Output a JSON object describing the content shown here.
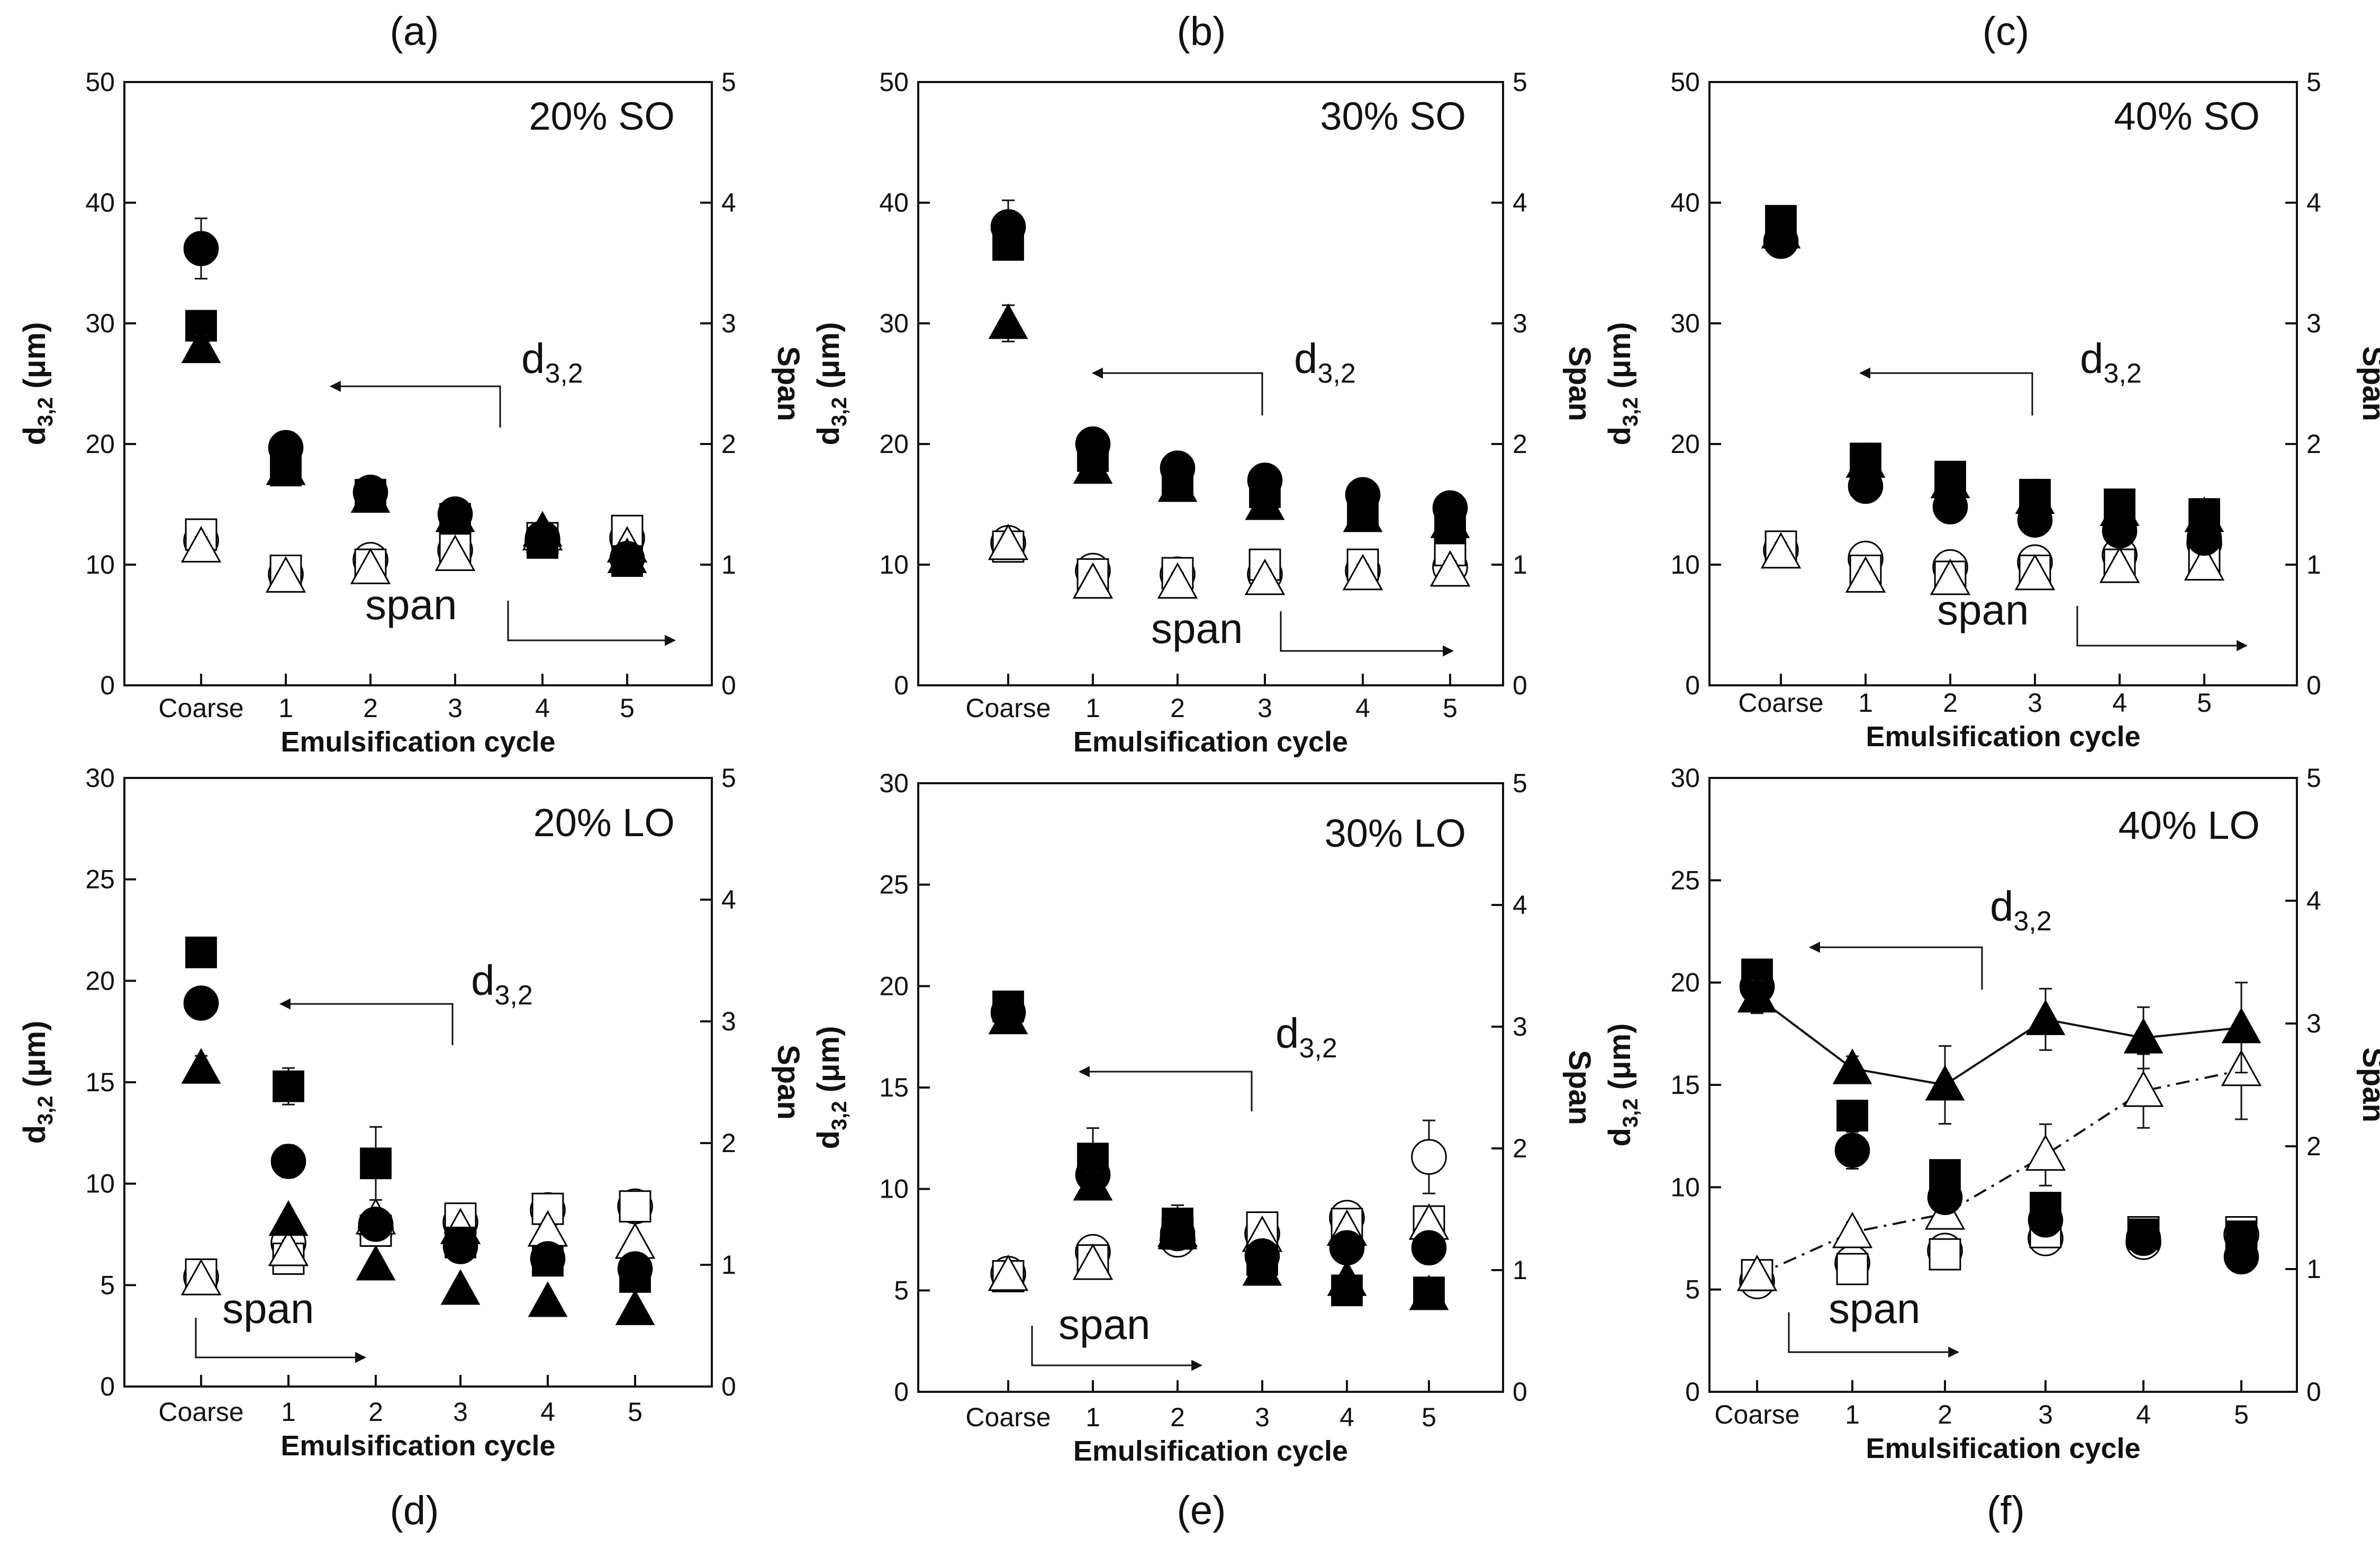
{
  "figure": {
    "xlabel": "Emulsification cycle",
    "ylabel_left_main": "d",
    "ylabel_left_sub": "3,2",
    "ylabel_left_unit": " (μm)",
    "ylabel_right": "Span",
    "annot_d_main": "d",
    "annot_d_sub": "3,2",
    "annot_span": "span"
  },
  "chart_data": [
    {
      "panel_label": "(a)",
      "title": "20% SO",
      "type": "scatter",
      "categories": [
        "Coarse",
        "1",
        "2",
        "3",
        "4",
        "5"
      ],
      "ylim_left": [
        0,
        50
      ],
      "yticks_left": [
        0,
        10,
        20,
        30,
        40,
        50
      ],
      "ylim_right": [
        0,
        5
      ],
      "yticks_right": [
        0,
        1,
        2,
        3,
        4,
        5
      ],
      "series": [
        {
          "name": "d32 circle",
          "marker": "circle",
          "filled": true,
          "axis": "left",
          "values": [
            36.2,
            19.7,
            16.0,
            14.2,
            12.2,
            10.5
          ],
          "errors": [
            2.5,
            0.6,
            0.5,
            0.4,
            0.5,
            0.4
          ]
        },
        {
          "name": "d32 square",
          "marker": "square",
          "filled": true,
          "axis": "left",
          "values": [
            29.8,
            17.8,
            15.8,
            13.8,
            11.8,
            10.3
          ],
          "errors": [
            0.5,
            0.5,
            0.4,
            0.4,
            0.4,
            0.4
          ]
        },
        {
          "name": "d32 triangle",
          "marker": "triangle",
          "filled": true,
          "axis": "left",
          "values": [
            28.0,
            17.9,
            15.6,
            14.0,
            12.8,
            10.6
          ],
          "errors": [
            1.0,
            0.5,
            0.4,
            0.4,
            0.4,
            0.4
          ]
        },
        {
          "name": "span circle",
          "marker": "circle",
          "filled": false,
          "axis": "right",
          "values": [
            1.2,
            0.92,
            1.04,
            1.12,
            1.2,
            1.22
          ],
          "errors": [
            0.08,
            0.06,
            0.06,
            0.06,
            0.06,
            0.06
          ]
        },
        {
          "name": "span square",
          "marker": "square",
          "filled": false,
          "axis": "right",
          "values": [
            1.25,
            0.95,
            1.0,
            1.15,
            1.22,
            1.28
          ],
          "errors": [
            0.08,
            0.06,
            0.06,
            0.06,
            0.06,
            0.06
          ]
        },
        {
          "name": "span triangle",
          "marker": "triangle",
          "filled": false,
          "axis": "right",
          "values": [
            1.15,
            0.9,
            0.97,
            1.08,
            1.25,
            1.15
          ],
          "errors": [
            0.08,
            0.06,
            0.06,
            0.06,
            0.06,
            0.06
          ]
        }
      ],
      "lines": []
    },
    {
      "panel_label": "(b)",
      "title": "30% SO",
      "type": "scatter",
      "categories": [
        "Coarse",
        "1",
        "2",
        "3",
        "4",
        "5"
      ],
      "ylim_left": [
        0,
        50
      ],
      "yticks_left": [
        0,
        10,
        20,
        30,
        40,
        50
      ],
      "ylim_right": [
        0,
        5
      ],
      "yticks_right": [
        0,
        1,
        2,
        3,
        4,
        5
      ],
      "series": [
        {
          "name": "d32 circle",
          "marker": "circle",
          "filled": true,
          "axis": "left",
          "values": [
            38.0,
            20.0,
            18.0,
            17.0,
            15.8,
            14.7
          ],
          "errors": [
            2.2,
            0.6,
            0.6,
            0.6,
            0.5,
            0.5
          ]
        },
        {
          "name": "d32 square",
          "marker": "square",
          "filled": true,
          "axis": "left",
          "values": [
            36.5,
            19.0,
            17.0,
            16.0,
            14.5,
            13.0
          ],
          "errors": [
            1.0,
            0.6,
            0.6,
            0.6,
            0.5,
            0.5
          ]
        },
        {
          "name": "d32 triangle",
          "marker": "triangle",
          "filled": true,
          "axis": "left",
          "values": [
            30.0,
            18.0,
            16.5,
            15.0,
            14.0,
            13.5
          ],
          "errors": [
            1.5,
            0.6,
            0.6,
            0.6,
            0.5,
            0.5
          ]
        },
        {
          "name": "span circle",
          "marker": "circle",
          "filled": false,
          "axis": "right",
          "values": [
            1.18,
            0.95,
            0.92,
            0.92,
            0.95,
            0.98
          ],
          "errors": [
            0.08,
            0.08,
            0.08,
            0.08,
            0.08,
            0.08
          ]
        },
        {
          "name": "span square",
          "marker": "square",
          "filled": false,
          "axis": "right",
          "values": [
            1.15,
            0.92,
            0.93,
            1.0,
            1.0,
            1.12
          ],
          "errors": [
            0.08,
            0.08,
            0.08,
            0.08,
            0.08,
            0.08
          ]
        },
        {
          "name": "span triangle",
          "marker": "triangle",
          "filled": false,
          "axis": "right",
          "values": [
            1.17,
            0.85,
            0.85,
            0.88,
            0.92,
            0.95
          ],
          "errors": [
            0.08,
            0.08,
            0.08,
            0.08,
            0.08,
            0.08
          ]
        }
      ],
      "lines": []
    },
    {
      "panel_label": "(c)",
      "title": "40% SO",
      "type": "scatter",
      "categories": [
        "Coarse",
        "1",
        "2",
        "3",
        "4",
        "5"
      ],
      "ylim_left": [
        0,
        50
      ],
      "yticks_left": [
        0,
        10,
        20,
        30,
        40,
        50
      ],
      "ylim_right": [
        0,
        5
      ],
      "yticks_right": [
        0,
        1,
        2,
        3,
        4,
        5
      ],
      "series": [
        {
          "name": "d32 circle",
          "marker": "circle",
          "filled": true,
          "axis": "left",
          "values": [
            36.8,
            16.5,
            14.8,
            13.7,
            12.8,
            12.2
          ],
          "errors": [
            0.6,
            0.5,
            0.5,
            0.5,
            0.5,
            0.5
          ]
        },
        {
          "name": "d32 square",
          "marker": "square",
          "filled": true,
          "axis": "left",
          "values": [
            38.5,
            18.8,
            17.3,
            15.8,
            15.0,
            14.2
          ],
          "errors": [
            1.0,
            0.5,
            0.5,
            0.5,
            0.5,
            0.5
          ]
        },
        {
          "name": "d32 triangle",
          "marker": "triangle",
          "filled": true,
          "axis": "left",
          "values": [
            37.5,
            18.5,
            16.8,
            15.5,
            14.5,
            14.0
          ],
          "errors": [
            0.8,
            0.5,
            0.5,
            0.5,
            0.5,
            0.5
          ]
        },
        {
          "name": "span circle",
          "marker": "circle",
          "filled": false,
          "axis": "right",
          "values": [
            1.12,
            1.05,
            0.98,
            1.02,
            1.08,
            1.18
          ],
          "errors": [
            0.08,
            0.08,
            0.08,
            0.08,
            0.08,
            0.08
          ]
        },
        {
          "name": "span square",
          "marker": "square",
          "filled": false,
          "axis": "right",
          "values": [
            1.15,
            0.95,
            0.9,
            0.95,
            1.0,
            1.05
          ],
          "errors": [
            0.08,
            0.08,
            0.08,
            0.08,
            0.08,
            0.08
          ]
        },
        {
          "name": "span triangle",
          "marker": "triangle",
          "filled": false,
          "axis": "right",
          "values": [
            1.1,
            0.9,
            0.88,
            0.92,
            0.98,
            1.0
          ],
          "errors": [
            0.08,
            0.08,
            0.08,
            0.08,
            0.08,
            0.08
          ]
        }
      ],
      "lines": []
    },
    {
      "panel_label": "(d)",
      "title": "20% LO",
      "type": "scatter",
      "categories": [
        "Coarse",
        "1",
        "2",
        "3",
        "4",
        "5"
      ],
      "ylim_left": [
        0,
        30
      ],
      "yticks_left": [
        0,
        5,
        10,
        15,
        20,
        25,
        30
      ],
      "ylim_right": [
        0,
        5
      ],
      "yticks_right": [
        0,
        1,
        2,
        3,
        4,
        5
      ],
      "series": [
        {
          "name": "d32 circle",
          "marker": "circle",
          "filled": true,
          "axis": "left",
          "values": [
            18.9,
            11.1,
            8.0,
            6.9,
            6.3,
            5.8
          ],
          "errors": [
            0.3,
            0.8,
            0.6,
            0.5,
            0.5,
            0.5
          ]
        },
        {
          "name": "d32 square",
          "marker": "square",
          "filled": true,
          "axis": "left",
          "values": [
            21.4,
            14.8,
            11.0,
            7.1,
            6.2,
            5.4
          ],
          "errors": [
            0.3,
            0.9,
            1.8,
            0.5,
            0.5,
            0.5
          ]
        },
        {
          "name": "d32 triangle",
          "marker": "triangle",
          "filled": true,
          "axis": "left",
          "values": [
            15.7,
            8.2,
            6.0,
            4.8,
            4.2,
            3.8
          ],
          "errors": [
            0.6,
            0.4,
            0.4,
            0.4,
            0.4,
            0.4
          ]
        },
        {
          "name": "span circle",
          "marker": "circle",
          "filled": false,
          "axis": "right",
          "values": [
            0.9,
            1.18,
            1.3,
            1.35,
            1.45,
            1.48
          ],
          "errors": [
            0.06,
            0.08,
            0.08,
            0.06,
            0.06,
            0.06
          ]
        },
        {
          "name": "span square",
          "marker": "square",
          "filled": false,
          "axis": "right",
          "values": [
            0.92,
            1.05,
            1.28,
            1.38,
            1.46,
            1.48
          ],
          "errors": [
            0.06,
            0.08,
            0.08,
            0.06,
            0.06,
            0.06
          ]
        },
        {
          "name": "span triangle",
          "marker": "triangle",
          "filled": false,
          "axis": "right",
          "values": [
            0.88,
            1.12,
            1.38,
            1.3,
            1.28,
            1.18
          ],
          "errors": [
            0.06,
            0.08,
            0.08,
            0.06,
            0.06,
            0.06
          ]
        }
      ],
      "lines": []
    },
    {
      "panel_label": "(e)",
      "title": "30% LO",
      "type": "scatter",
      "categories": [
        "Coarse",
        "1",
        "2",
        "3",
        "4",
        "5"
      ],
      "ylim_left": [
        0,
        30
      ],
      "yticks_left": [
        0,
        5,
        10,
        15,
        20,
        25,
        30
      ],
      "ylim_right": [
        0,
        5
      ],
      "yticks_right": [
        0,
        1,
        2,
        3,
        4,
        5
      ],
      "series": [
        {
          "name": "d32 circle",
          "marker": "circle",
          "filled": true,
          "axis": "left",
          "values": [
            18.7,
            10.7,
            7.8,
            6.7,
            7.1,
            7.1
          ],
          "errors": [
            0.4,
            0.6,
            0.5,
            0.4,
            0.4,
            0.4
          ]
        },
        {
          "name": "d32 square",
          "marker": "square",
          "filled": true,
          "axis": "left",
          "values": [
            19.0,
            11.5,
            8.3,
            6.5,
            5.0,
            4.9
          ],
          "errors": [
            0.4,
            1.5,
            0.9,
            0.5,
            0.4,
            0.4
          ]
        },
        {
          "name": "d32 triangle",
          "marker": "triangle",
          "filled": true,
          "axis": "left",
          "values": [
            18.4,
            10.2,
            7.8,
            6.0,
            5.5,
            4.8
          ],
          "errors": [
            0.4,
            0.6,
            0.5,
            0.4,
            0.4,
            0.4
          ]
        },
        {
          "name": "span circle",
          "marker": "circle",
          "filled": false,
          "axis": "right",
          "values": [
            0.97,
            1.15,
            1.25,
            1.3,
            1.43,
            1.93
          ],
          "errors": [
            0.06,
            0.08,
            0.08,
            0.06,
            0.06,
            0.3
          ]
        },
        {
          "name": "span square",
          "marker": "square",
          "filled": false,
          "axis": "right",
          "values": [
            0.95,
            1.08,
            1.3,
            1.35,
            1.38,
            1.4
          ],
          "errors": [
            0.06,
            0.08,
            0.08,
            0.06,
            0.06,
            0.06
          ]
        },
        {
          "name": "span triangle",
          "marker": "triangle",
          "filled": false,
          "axis": "right",
          "values": [
            0.96,
            1.05,
            1.32,
            1.28,
            1.33,
            1.38
          ],
          "errors": [
            0.06,
            0.08,
            0.08,
            0.06,
            0.06,
            0.06
          ]
        }
      ],
      "lines": []
    },
    {
      "panel_label": "(f)",
      "title": "40% LO",
      "type": "scatter",
      "categories": [
        "Coarse",
        "1",
        "2",
        "3",
        "4",
        "5"
      ],
      "ylim_left": [
        0,
        30
      ],
      "yticks_left": [
        0,
        5,
        10,
        15,
        20,
        25,
        30
      ],
      "ylim_right": [
        0,
        5
      ],
      "yticks_right": [
        0,
        1,
        2,
        3,
        4,
        5
      ],
      "series": [
        {
          "name": "d32 circle",
          "marker": "circle",
          "filled": true,
          "axis": "left",
          "values": [
            19.8,
            11.8,
            9.5,
            8.4,
            7.5,
            6.6
          ],
          "errors": [
            0.5,
            0.9,
            0.6,
            0.5,
            0.4,
            0.4
          ]
        },
        {
          "name": "d32 square",
          "marker": "square",
          "filled": true,
          "axis": "left",
          "values": [
            20.4,
            13.5,
            10.6,
            9.0,
            7.7,
            7.6
          ],
          "errors": [
            0.5,
            0.6,
            0.5,
            0.5,
            0.4,
            0.4
          ]
        },
        {
          "name": "d32 triangle",
          "marker": "triangle",
          "filled": true,
          "axis": "left",
          "values": [
            19.3,
            15.8,
            15.0,
            18.2,
            17.3,
            17.8
          ],
          "errors": [
            0.8,
            0.6,
            1.9,
            1.5,
            1.5,
            2.2
          ]
        },
        {
          "name": "span circle",
          "marker": "circle",
          "filled": false,
          "axis": "right",
          "values": [
            0.9,
            1.05,
            1.15,
            1.25,
            1.22,
            1.28
          ],
          "errors": [
            0.05,
            0.08,
            0.06,
            0.06,
            0.06,
            0.06
          ]
        },
        {
          "name": "span square",
          "marker": "square",
          "filled": false,
          "axis": "right",
          "values": [
            0.95,
            1.0,
            1.12,
            1.3,
            1.3,
            1.3
          ],
          "errors": [
            0.05,
            0.08,
            0.06,
            0.06,
            0.06,
            0.06
          ]
        },
        {
          "name": "span triangle",
          "marker": "triangle",
          "filled": false,
          "axis": "right",
          "values": [
            0.95,
            1.3,
            1.45,
            1.93,
            2.45,
            2.62
          ],
          "errors": [
            0.05,
            0.08,
            0.12,
            0.25,
            0.3,
            0.4
          ]
        }
      ],
      "lines": [
        {
          "series": "d32 triangle",
          "style": "solid"
        },
        {
          "series": "span triangle",
          "style": "dashdot"
        }
      ]
    }
  ]
}
